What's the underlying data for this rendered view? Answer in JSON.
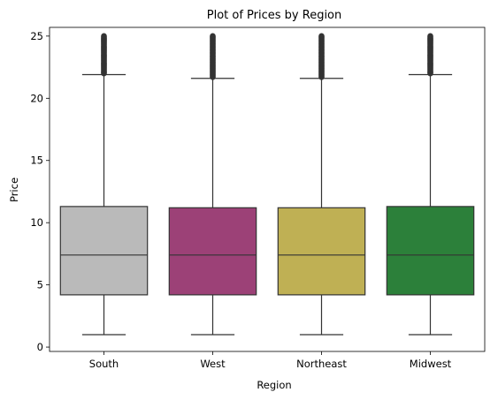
{
  "chart_data": {
    "type": "box",
    "title": "Plot of Prices by Region",
    "xlabel": "Region",
    "ylabel": "Price",
    "ylim": [
      -0.35,
      25.7
    ],
    "yticks": [
      0,
      5,
      10,
      15,
      20,
      25
    ],
    "grid": false,
    "legend": "none",
    "categories": [
      "South",
      "West",
      "Northeast",
      "Midwest"
    ],
    "colors": [
      "#bababa",
      "#9c4177",
      "#bfb054",
      "#2c803a"
    ],
    "boxes": [
      {
        "category": "South",
        "whisker_low": 1,
        "q1": 4.2,
        "median": 7.4,
        "q3": 11.3,
        "whisker_high": 21.9,
        "outlier_range": [
          22.0,
          25.0
        ]
      },
      {
        "category": "West",
        "whisker_low": 1,
        "q1": 4.2,
        "median": 7.4,
        "q3": 11.2,
        "whisker_high": 21.6,
        "outlier_range": [
          21.7,
          25.0
        ]
      },
      {
        "category": "Northeast",
        "whisker_low": 1,
        "q1": 4.2,
        "median": 7.4,
        "q3": 11.2,
        "whisker_high": 21.6,
        "outlier_range": [
          21.7,
          25.0
        ]
      },
      {
        "category": "Midwest",
        "whisker_low": 1,
        "q1": 4.2,
        "median": 7.4,
        "q3": 11.3,
        "whisker_high": 21.9,
        "outlier_range": [
          22.0,
          25.0
        ]
      }
    ]
  }
}
